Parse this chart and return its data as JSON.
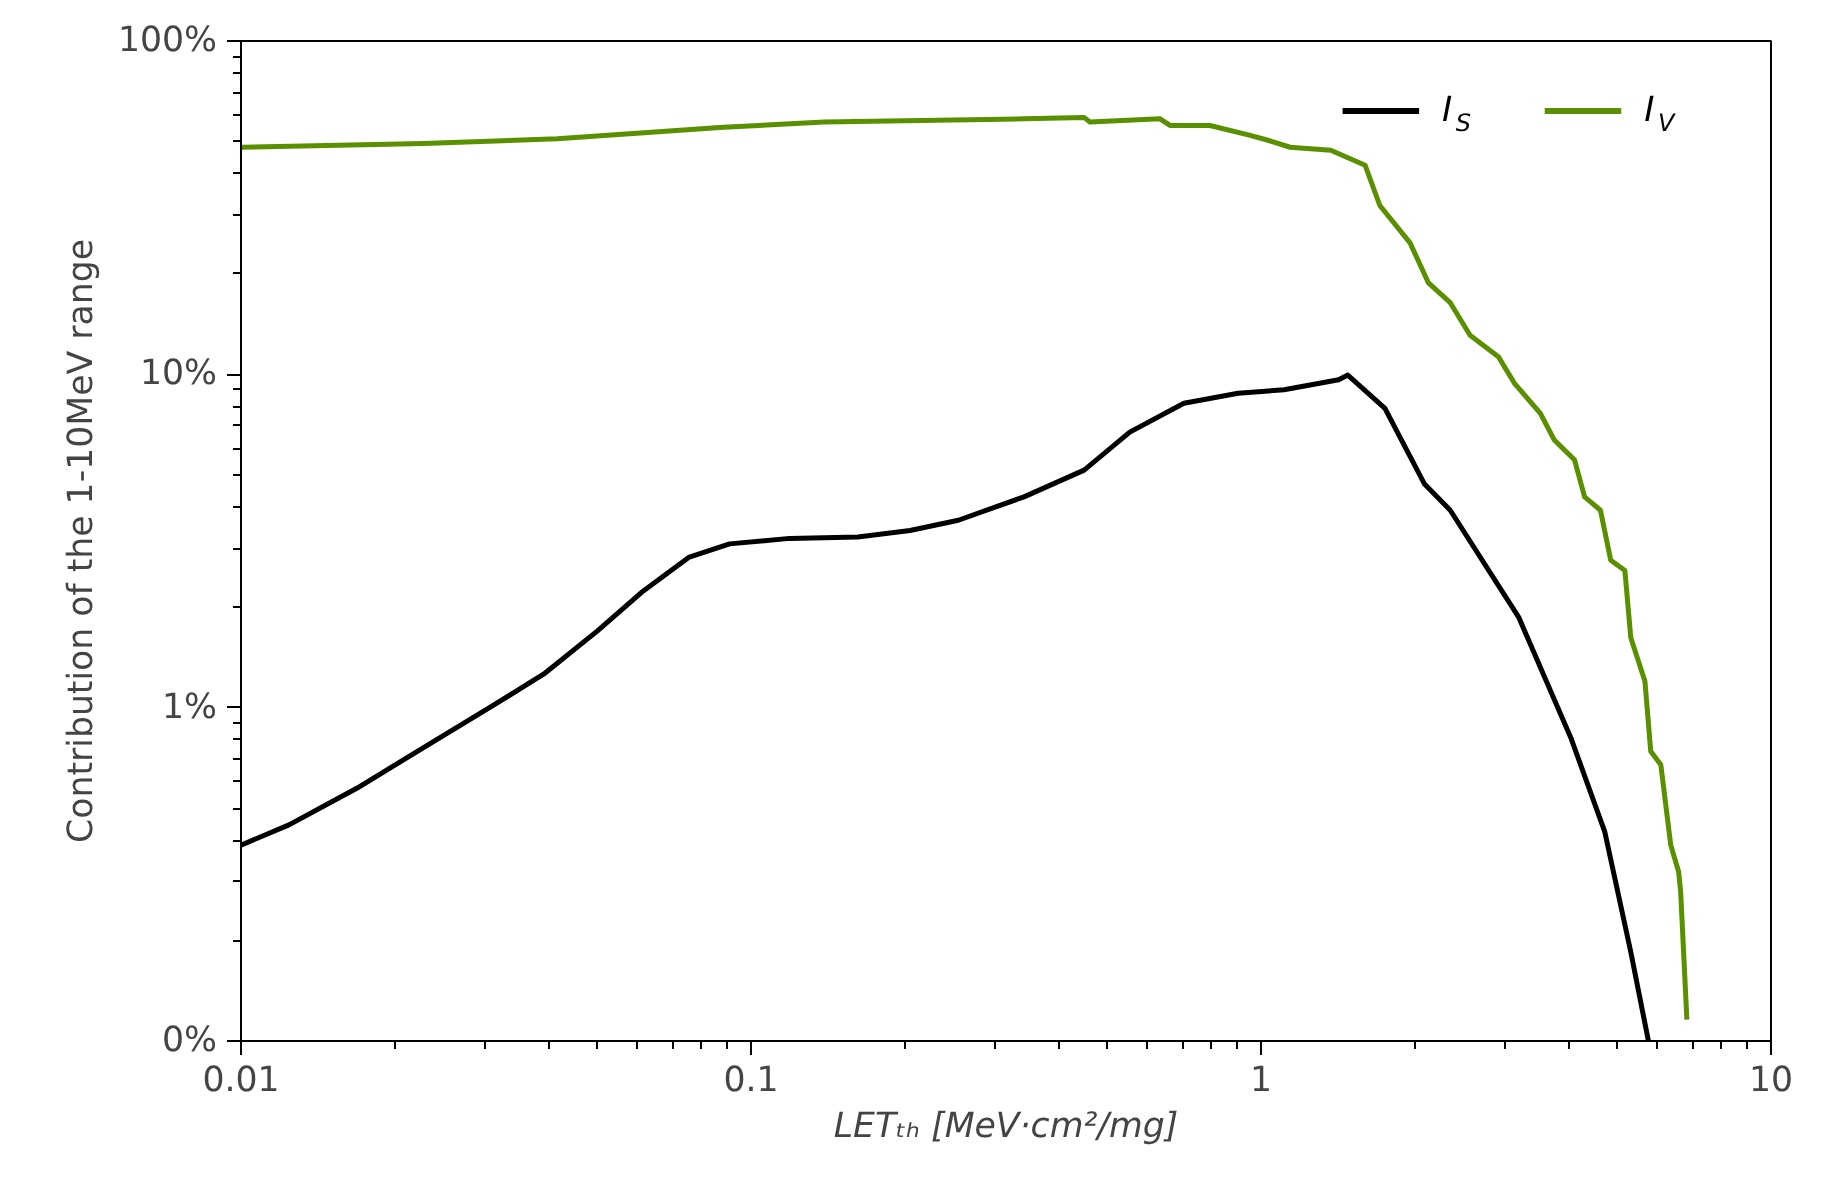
{
  "chart_data": {
    "type": "line",
    "xlabel": "LETₜₕ [MeV·cm²/mg]",
    "ylabel": "Contribution of the 1-10MeV range",
    "log": "xy",
    "xlim": [
      0.01,
      10
    ],
    "xticks": [
      0.01,
      0.1,
      1,
      10
    ],
    "ylim": [
      0.1,
      100
    ],
    "yticks": [
      {
        "value": 0.1,
        "label": "0%"
      },
      {
        "value": 1,
        "label": "1%"
      },
      {
        "value": 10,
        "label": "10%"
      },
      {
        "value": 100,
        "label": "100%"
      }
    ],
    "grid": false,
    "legend": "top right",
    "marker": "none",
    "line_style": "solid",
    "series": [
      {
        "name": "I$_{S}$",
        "color": "#000000",
        "x": [
          0.01,
          0.01242,
          0.0169,
          0.0228,
          0.0307,
          0.0392,
          0.05,
          0.0615,
          0.0757,
          0.0908,
          0.119,
          0.162,
          0.205,
          0.255,
          0.343,
          0.45,
          0.553,
          0.706,
          0.902,
          1.11,
          1.42,
          1.48,
          1.75,
          2.09,
          2.35,
          3.2,
          4.05,
          4.72,
          5.31,
          5.75
        ],
        "values": [
          0.387,
          0.445,
          0.574,
          0.759,
          1.0,
          1.26,
          1.7,
          2.24,
          2.83,
          3.1,
          3.22,
          3.25,
          3.4,
          3.65,
          4.29,
          5.16,
          6.71,
          8.19,
          8.77,
          8.99,
          9.63,
          9.95,
          7.9,
          4.7,
          3.91,
          1.87,
          0.813,
          0.425,
          0.185,
          0.1
        ]
      },
      {
        "name": "I$_{V}$",
        "color": "#5a8f00",
        "x": [
          0.01,
          0.0228,
          0.0417,
          0.0883,
          0.139,
          0.343,
          0.45,
          0.462,
          0.634,
          0.663,
          0.794,
          0.953,
          1.04,
          1.14,
          1.37,
          1.6,
          1.71,
          1.96,
          2.13,
          2.35,
          2.57,
          2.92,
          3.14,
          3.53,
          3.76,
          4.12,
          4.31,
          4.63,
          4.85,
          5.17,
          5.31,
          5.66,
          5.81,
          6.08,
          6.36,
          6.59,
          6.65,
          6.84
        ],
        "values": [
          48.0,
          49.3,
          50.9,
          55.1,
          57.1,
          58.4,
          59.0,
          57.1,
          58.4,
          55.8,
          55.8,
          52.1,
          50.2,
          48.0,
          47.0,
          42.4,
          32.1,
          24.8,
          18.8,
          16.4,
          13.1,
          11.3,
          9.4,
          7.64,
          6.35,
          5.53,
          4.29,
          3.91,
          2.77,
          2.58,
          1.62,
          1.2,
          0.74,
          0.674,
          0.387,
          0.322,
          0.281,
          0.116
        ]
      }
    ]
  }
}
